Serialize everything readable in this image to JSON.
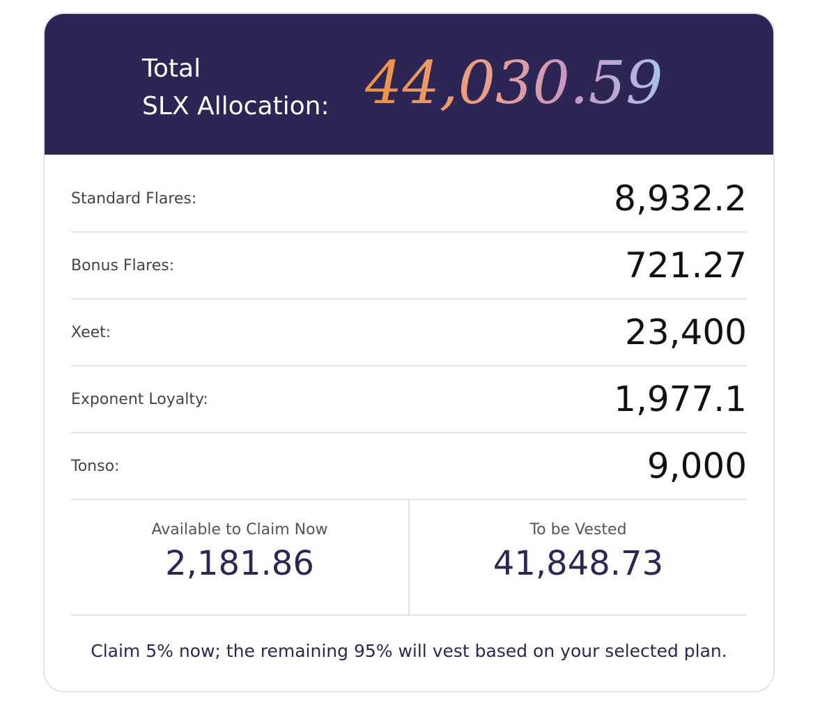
{
  "header": {
    "label_line1": "Total",
    "label_line2": "SLX Allocation:",
    "total": "44,030.59"
  },
  "rows": [
    {
      "label": "Standard Flares:",
      "value": "8,932.2"
    },
    {
      "label": "Bonus Flares:",
      "value": "721.27"
    },
    {
      "label": "Xeet:",
      "value": "23,400"
    },
    {
      "label": "Exponent Loyalty:",
      "value": "1,977.1"
    },
    {
      "label": "Tonso:",
      "value": "9,000"
    }
  ],
  "summary": [
    {
      "label": "Available to Claim Now",
      "value": "2,181.86"
    },
    {
      "label": "To be Vested",
      "value": "41,848.73"
    }
  ],
  "footnote": "Claim 5% now; the remaining 95% will vest based on your selected plan."
}
